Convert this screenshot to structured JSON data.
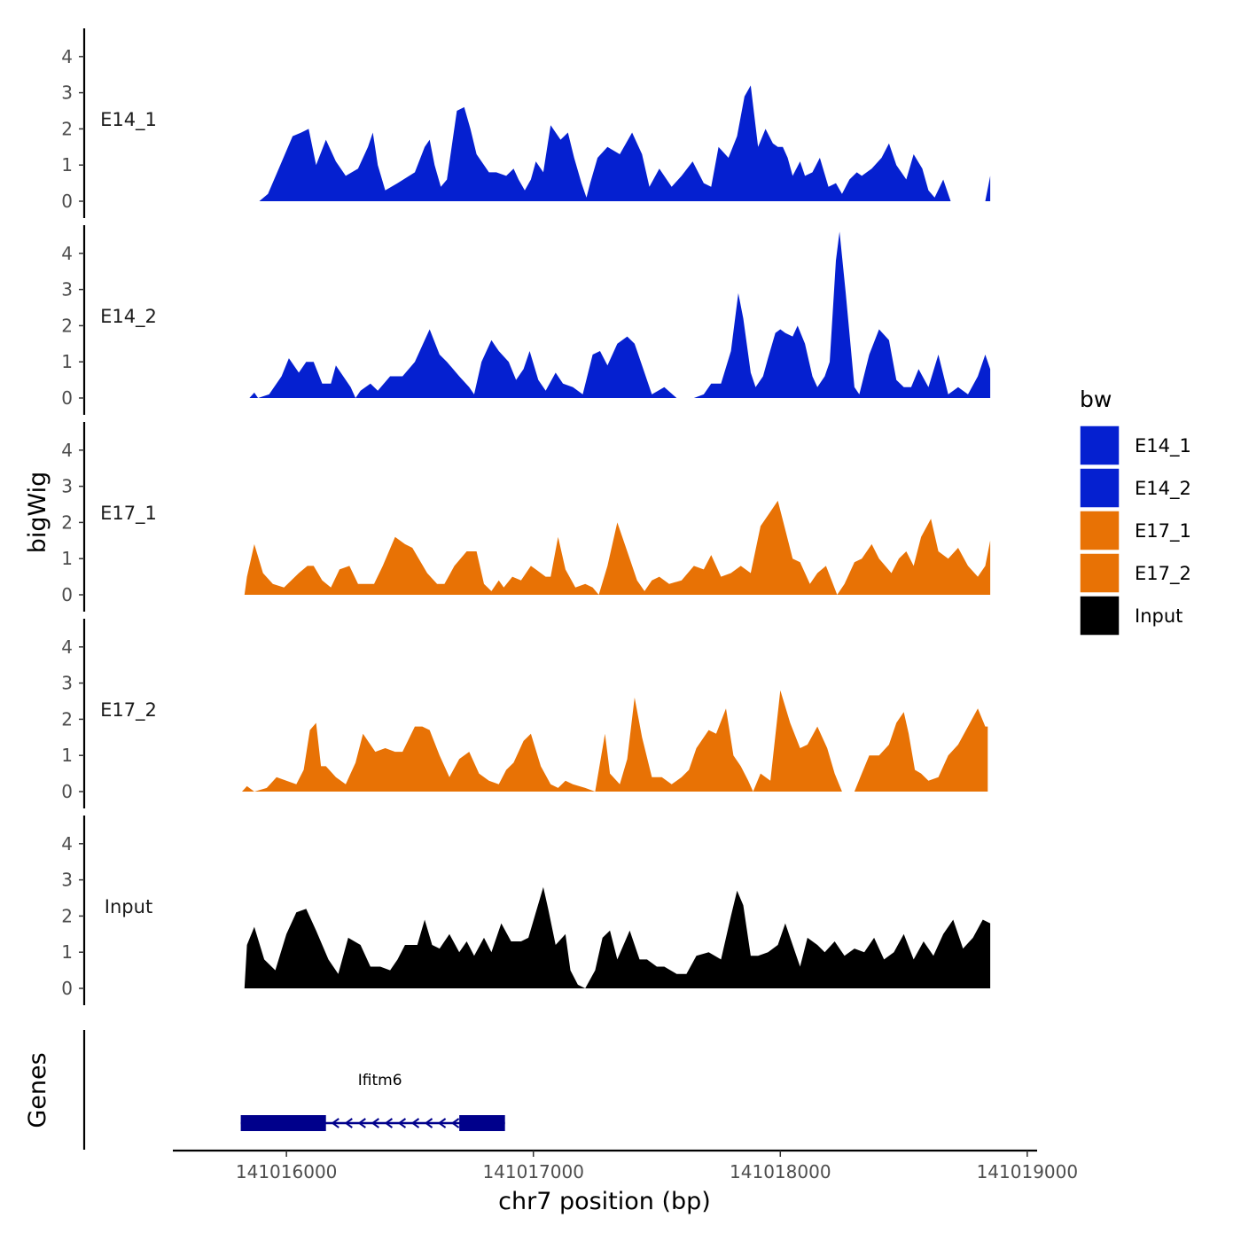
{
  "chart_data": {
    "type": "area",
    "y_axis_title": "bigWig",
    "x_axis_title": "chr7 position (bp)",
    "genes_axis_title": "Genes",
    "legend_title": "bw",
    "xlim": [
      141015540,
      141019040
    ],
    "x_ticks": [
      {
        "value": 141016000,
        "label": "141016000"
      },
      {
        "value": 141017000,
        "label": "141017000"
      },
      {
        "value": 141018000,
        "label": "141018000"
      },
      {
        "value": 141019000,
        "label": "141019000"
      }
    ],
    "ylim": [
      0,
      4.8
    ],
    "y_ticks": [
      {
        "value": 0,
        "label": "0"
      },
      {
        "value": 1,
        "label": "1"
      },
      {
        "value": 2,
        "label": "2"
      },
      {
        "value": 3,
        "label": "3"
      },
      {
        "value": 4,
        "label": "4"
      }
    ],
    "colors": {
      "E14": "#0520d0",
      "E17": "#e87205",
      "Input": "#000000",
      "gene": "#00008b"
    },
    "legend": [
      {
        "label": "E14_1",
        "color": "#0520d0"
      },
      {
        "label": "E14_2",
        "color": "#0520d0"
      },
      {
        "label": "E17_1",
        "color": "#e87205"
      },
      {
        "label": "E17_2",
        "color": "#e87205"
      },
      {
        "label": "Input",
        "color": "#000000"
      }
    ],
    "series": [
      {
        "name": "E14_1",
        "color": "#0520d0",
        "x": [
          141015890,
          141015925,
          141015975,
          141016025,
          141016060,
          141016090,
          141016120,
          141016160,
          141016200,
          141016240,
          141016290,
          141016330,
          141016350,
          141016370,
          141016400,
          141016450,
          141016520,
          141016560,
          141016580,
          141016600,
          141016625,
          141016650,
          141016690,
          141016720,
          141016745,
          141016770,
          141016820,
          141016850,
          141016890,
          141016920,
          141016940,
          141016965,
          141016990,
          141017010,
          141017040,
          141017070,
          141017110,
          141017140,
          141017165,
          141017195,
          141017215,
          141017230,
          141017260,
          141017300,
          141017350,
          141017400,
          141017440,
          141017470,
          141017510,
          141017560,
          141017600,
          141017645,
          141017690,
          141017720,
          141017750,
          141017790,
          141017825,
          141017855,
          141017880,
          141017910,
          141017940,
          141017970,
          141017990,
          141018010,
          141018030,
          141018050,
          141018080,
          141018100,
          141018130,
          141018160,
          141018195,
          141018225,
          141018250,
          141018280,
          141018310,
          141018330,
          141018370,
          141018410,
          141018440,
          141018470,
          141018510,
          141018540,
          141018575,
          141018600,
          141018625,
          141018660,
          141018690,
          141018720,
          141018750,
          141018790,
          141018830,
          141018850
        ],
        "values": [
          0,
          0.2,
          1.0,
          1.8,
          1.9,
          2.0,
          1.0,
          1.7,
          1.1,
          0.7,
          0.9,
          1.5,
          1.9,
          1.0,
          0.3,
          0.5,
          0.8,
          1.5,
          1.7,
          1.0,
          0.4,
          0.6,
          2.5,
          2.6,
          2.0,
          1.3,
          0.8,
          0.8,
          0.7,
          0.9,
          0.6,
          0.3,
          0.6,
          1.1,
          0.8,
          2.1,
          1.7,
          1.9,
          1.2,
          0.5,
          0.1,
          0.5,
          1.2,
          1.5,
          1.3,
          1.9,
          1.3,
          0.4,
          0.9,
          0.4,
          0.7,
          1.1,
          0.5,
          0.4,
          1.5,
          1.2,
          1.8,
          2.9,
          3.2,
          1.5,
          2.0,
          1.6,
          1.5,
          1.5,
          1.2,
          0.7,
          1.1,
          0.7,
          0.8,
          1.2,
          0.4,
          0.5,
          0.2,
          0.6,
          0.8,
          0.7,
          0.9,
          1.2,
          1.6,
          1.0,
          0.6,
          1.3,
          0.9,
          0.3,
          0.1,
          0.6,
          0.0,
          0,
          0,
          0,
          0,
          0.7
        ]
      },
      {
        "name": "E14_2",
        "color": "#0520d0",
        "x": [
          141015850,
          141015870,
          141015885,
          141015930,
          141015980,
          141016010,
          141016050,
          141016080,
          141016110,
          141016145,
          141016180,
          141016200,
          141016260,
          141016280,
          141016300,
          141016340,
          141016370,
          141016420,
          141016470,
          141016520,
          141016560,
          141016580,
          141016620,
          141016650,
          141016700,
          141016740,
          141016760,
          141016790,
          141016830,
          141016860,
          141016900,
          141016930,
          141016960,
          141016985,
          141017020,
          141017050,
          141017090,
          141017120,
          141017160,
          141017200,
          141017240,
          141017270,
          141017300,
          141017340,
          141017380,
          141017410,
          141017440,
          141017480,
          141017530,
          141017580,
          141017610,
          141017650,
          141017690,
          141017720,
          141017760,
          141017800,
          141017830,
          141017850,
          141017880,
          141017900,
          141017930,
          141017950,
          141017980,
          141018000,
          141018020,
          141018050,
          141018070,
          141018100,
          141018130,
          141018150,
          141018180,
          141018200,
          141018225,
          141018240,
          141018265,
          141018300,
          141018320,
          141018360,
          141018400,
          141018440,
          141018470,
          141018500,
          141018530,
          141018560,
          141018600,
          141018640,
          141018680,
          141018720,
          141018760,
          141018800,
          141018830,
          141018850
        ],
        "values": [
          0,
          0.15,
          0,
          0.1,
          0.6,
          1.1,
          0.7,
          1.0,
          1.0,
          0.4,
          0.4,
          0.9,
          0.3,
          0.0,
          0.2,
          0.4,
          0.2,
          0.6,
          0.6,
          1.0,
          1.6,
          1.9,
          1.2,
          1.0,
          0.6,
          0.3,
          0.1,
          1.0,
          1.6,
          1.3,
          1.0,
          0.5,
          0.8,
          1.3,
          0.5,
          0.2,
          0.7,
          0.4,
          0.3,
          0.1,
          1.2,
          1.3,
          0.9,
          1.5,
          1.7,
          1.5,
          0.9,
          0.1,
          0.3,
          0.0,
          0,
          0,
          0.1,
          0.4,
          0.4,
          1.3,
          2.9,
          2.2,
          0.7,
          0.3,
          0.6,
          1.1,
          1.8,
          1.9,
          1.8,
          1.7,
          2.0,
          1.5,
          0.6,
          0.3,
          0.6,
          1.0,
          3.8,
          4.6,
          2.9,
          0.3,
          0.1,
          1.2,
          1.9,
          1.6,
          0.5,
          0.3,
          0.3,
          0.8,
          0.3,
          1.2,
          0.1,
          0.3,
          0.1,
          0.6,
          1.2,
          0.8
        ]
      },
      {
        "name": "E17_1",
        "color": "#e87205",
        "x": [
          141015830,
          141015840,
          141015870,
          141015905,
          141015945,
          141015990,
          141016050,
          141016085,
          141016110,
          141016145,
          141016180,
          141016215,
          141016255,
          141016290,
          141016320,
          141016355,
          141016390,
          141016440,
          141016480,
          141016510,
          141016570,
          141016610,
          141016640,
          141016680,
          141016730,
          141016770,
          141016800,
          141016830,
          141016860,
          141016880,
          141016915,
          141016950,
          141016990,
          141017010,
          141017050,
          141017070,
          141017100,
          141017130,
          141017170,
          141017210,
          141017240,
          141017265,
          141017300,
          141017340,
          141017380,
          141017420,
          141017450,
          141017480,
          141017510,
          141017550,
          141017600,
          141017650,
          141017690,
          141017720,
          141017760,
          141017800,
          141017840,
          141017880,
          141017920,
          141017950,
          141017990,
          141018020,
          141018050,
          141018080,
          141018120,
          141018150,
          141018185,
          141018230,
          141018260,
          141018300,
          141018330,
          141018370,
          141018400,
          141018450,
          141018480,
          141018510,
          141018540,
          141018570,
          141018610,
          141018640,
          141018680,
          141018720,
          141018760,
          141018800,
          141018830,
          141018850
        ],
        "values": [
          0,
          0.5,
          1.4,
          0.6,
          0.3,
          0.2,
          0.6,
          0.8,
          0.8,
          0.4,
          0.2,
          0.7,
          0.8,
          0.3,
          0.3,
          0.3,
          0.8,
          1.6,
          1.4,
          1.3,
          0.6,
          0.3,
          0.3,
          0.8,
          1.2,
          1.2,
          0.3,
          0.1,
          0.4,
          0.2,
          0.5,
          0.4,
          0.8,
          0.7,
          0.5,
          0.5,
          1.6,
          0.7,
          0.2,
          0.3,
          0.2,
          0.0,
          0.8,
          2.0,
          1.2,
          0.4,
          0.1,
          0.4,
          0.5,
          0.3,
          0.4,
          0.8,
          0.7,
          1.1,
          0.5,
          0.6,
          0.8,
          0.6,
          1.9,
          2.2,
          2.6,
          1.8,
          1.0,
          0.9,
          0.3,
          0.6,
          0.8,
          0.0,
          0.3,
          0.9,
          1.0,
          1.4,
          1.0,
          0.6,
          1.0,
          1.2,
          0.8,
          1.6,
          2.1,
          1.2,
          1.0,
          1.3,
          0.8,
          0.5,
          0.8,
          1.5
        ]
      },
      {
        "name": "E17_2",
        "color": "#e87205",
        "x": [
          141015820,
          141015840,
          141015870,
          141015920,
          141015960,
          141016000,
          141016040,
          141016070,
          141016095,
          141016120,
          141016140,
          141016160,
          141016200,
          141016240,
          141016280,
          141016310,
          141016360,
          141016400,
          141016440,
          141016470,
          141016520,
          141016550,
          141016580,
          141016620,
          141016660,
          141016700,
          141016740,
          141016780,
          141016820,
          141016860,
          141016890,
          141016920,
          141016960,
          141016990,
          141017030,
          141017070,
          141017100,
          141017130,
          141017160,
          141017210,
          141017250,
          141017290,
          141017310,
          141017350,
          141017380,
          141017410,
          141017440,
          141017480,
          141017520,
          141017560,
          141017600,
          141017630,
          141017660,
          141017710,
          141017740,
          141017780,
          141017810,
          141017840,
          141017870,
          141017890,
          141017920,
          141017960,
          141018000,
          141018040,
          141018080,
          141018110,
          141018150,
          141018190,
          141018220,
          141018250,
          141018280,
          141018300,
          141018330,
          141018360,
          141018400,
          141018440,
          141018470,
          141018500,
          141018520,
          141018545,
          141018570,
          141018600,
          141018640,
          141018680,
          141018720,
          141018760,
          141018800,
          141018830,
          141018840
        ],
        "values": [
          0,
          0.15,
          0.0,
          0.1,
          0.4,
          0.3,
          0.2,
          0.6,
          1.7,
          1.9,
          0.7,
          0.7,
          0.4,
          0.2,
          0.8,
          1.6,
          1.1,
          1.2,
          1.1,
          1.1,
          1.8,
          1.8,
          1.7,
          1.0,
          0.4,
          0.9,
          1.1,
          0.5,
          0.3,
          0.2,
          0.6,
          0.8,
          1.4,
          1.6,
          0.7,
          0.2,
          0.1,
          0.3,
          0.2,
          0.1,
          0.0,
          1.6,
          0.5,
          0.2,
          0.9,
          2.6,
          1.5,
          0.4,
          0.4,
          0.2,
          0.4,
          0.6,
          1.2,
          1.7,
          1.6,
          2.3,
          1.0,
          0.7,
          0.3,
          0.0,
          0.5,
          0.3,
          2.8,
          1.9,
          1.2,
          1.3,
          1.8,
          1.2,
          0.5,
          0.0,
          0,
          0,
          0.5,
          1.0,
          1.0,
          1.3,
          1.9,
          2.2,
          1.6,
          0.6,
          0.5,
          0.3,
          0.4,
          1.0,
          1.3,
          1.8,
          2.3,
          1.8,
          1.8
        ]
      },
      {
        "name": "Input",
        "color": "#000000",
        "x": [
          141015830,
          141015840,
          141015870,
          141015910,
          141015955,
          141016000,
          141016040,
          141016080,
          141016120,
          141016170,
          141016210,
          141016250,
          141016300,
          141016340,
          141016380,
          141016420,
          141016450,
          141016480,
          141016530,
          141016560,
          141016590,
          141016620,
          141016660,
          141016700,
          141016730,
          141016760,
          141016800,
          141016830,
          141016870,
          141016910,
          141016950,
          141016980,
          141017010,
          141017040,
          141017060,
          141017090,
          141017130,
          141017150,
          141017180,
          141017210,
          141017250,
          141017280,
          141017310,
          141017340,
          141017390,
          141017430,
          141017460,
          141017500,
          141017530,
          141017580,
          141017620,
          141017660,
          141017710,
          141017760,
          141017800,
          141017825,
          141017850,
          141017880,
          141017910,
          141017950,
          141017990,
          141018020,
          141018050,
          141018080,
          141018110,
          141018150,
          141018180,
          141018220,
          141018260,
          141018300,
          141018340,
          141018380,
          141018420,
          141018460,
          141018500,
          141018540,
          141018580,
          141018620,
          141018660,
          141018700,
          141018740,
          141018780,
          141018820,
          141018850
        ],
        "values": [
          0,
          1.2,
          1.7,
          0.8,
          0.5,
          1.5,
          2.1,
          2.2,
          1.6,
          0.8,
          0.4,
          1.4,
          1.2,
          0.6,
          0.6,
          0.5,
          0.8,
          1.2,
          1.2,
          1.9,
          1.2,
          1.1,
          1.5,
          1.0,
          1.3,
          0.9,
          1.4,
          1.0,
          1.8,
          1.3,
          1.3,
          1.4,
          2.1,
          2.8,
          2.2,
          1.2,
          1.5,
          0.5,
          0.1,
          0.0,
          0.5,
          1.4,
          1.6,
          0.8,
          1.6,
          0.8,
          0.8,
          0.6,
          0.6,
          0.4,
          0.4,
          0.9,
          1.0,
          0.8,
          2.0,
          2.7,
          2.3,
          0.9,
          0.9,
          1.0,
          1.2,
          1.8,
          1.2,
          0.6,
          1.4,
          1.2,
          1.0,
          1.3,
          0.9,
          1.1,
          1.0,
          1.4,
          0.8,
          1.0,
          1.5,
          0.8,
          1.3,
          0.9,
          1.5,
          1.9,
          1.1,
          1.4,
          1.9,
          1.8
        ]
      }
    ],
    "gene_track": {
      "name": "Ifitm6",
      "strand": "-",
      "start": 141015815,
      "end": 141016885,
      "exons": [
        [
          141015815,
          141016160
        ],
        [
          141016700,
          141016885
        ]
      ]
    }
  }
}
